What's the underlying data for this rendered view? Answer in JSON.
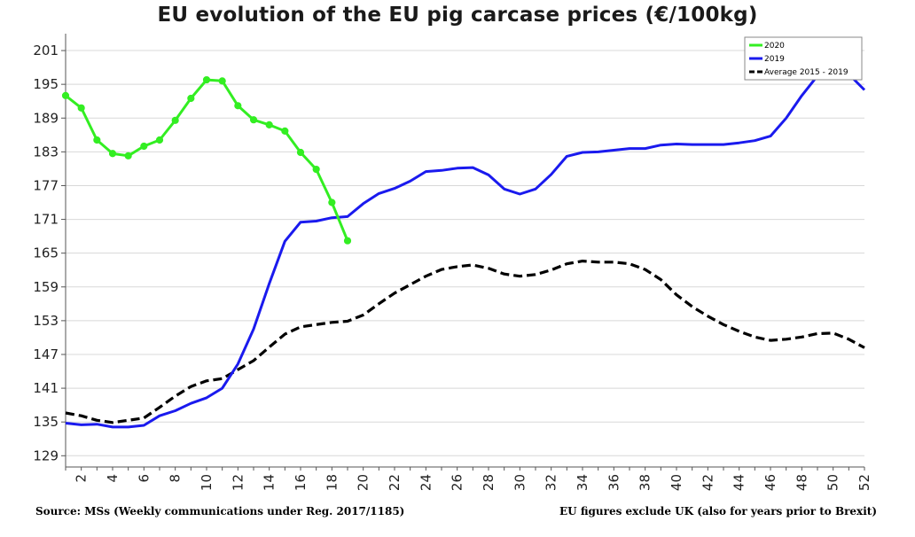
{
  "title": "EU evolution of the EU pig carcase prices (€/100kg)",
  "footer": {
    "source": "Source: MSs (Weekly communications under Reg. 2017/1185)",
    "note": "EU figures exclude UK (also for years prior to Brexit)"
  },
  "colors": {
    "s2020": "#33ee22",
    "s2019": "#1a1aee",
    "avg": "#000000",
    "grid": "#d8d8d8",
    "axis": "#555555"
  },
  "chart_data": {
    "type": "line",
    "xlim": [
      1,
      52
    ],
    "ylim": [
      127,
      204
    ],
    "x_ticks": [
      2,
      4,
      6,
      8,
      10,
      12,
      14,
      16,
      18,
      20,
      22,
      24,
      26,
      28,
      30,
      32,
      34,
      36,
      38,
      40,
      42,
      44,
      46,
      48,
      50,
      52
    ],
    "y_ticks": [
      129,
      135,
      141,
      147,
      153,
      159,
      165,
      171,
      177,
      183,
      189,
      195,
      201
    ],
    "grid": true,
    "legend": "top-right",
    "series": [
      {
        "name": "2020",
        "color_key": "s2020",
        "style": "solid-markers",
        "points": [
          [
            1,
            193.0
          ],
          [
            2,
            190.8
          ],
          [
            3,
            185.1
          ],
          [
            4,
            182.7
          ],
          [
            5,
            182.3
          ],
          [
            6,
            184.0
          ],
          [
            7,
            185.1
          ],
          [
            8,
            188.6
          ],
          [
            9,
            192.5
          ],
          [
            10,
            195.8
          ],
          [
            11,
            195.6
          ],
          [
            12,
            191.2
          ],
          [
            13,
            188.7
          ],
          [
            14,
            187.8
          ],
          [
            15,
            186.7
          ],
          [
            16,
            182.9
          ],
          [
            17,
            179.9
          ],
          [
            18,
            174.0
          ],
          [
            19,
            167.2
          ]
        ]
      },
      {
        "name": "2019",
        "color_key": "s2019",
        "style": "solid",
        "points": [
          [
            1,
            134.8
          ],
          [
            2,
            134.5
          ],
          [
            3,
            134.6
          ],
          [
            4,
            134.1
          ],
          [
            5,
            134.1
          ],
          [
            6,
            134.4
          ],
          [
            7,
            136.1
          ],
          [
            8,
            137.0
          ],
          [
            9,
            138.3
          ],
          [
            10,
            139.3
          ],
          [
            11,
            141.0
          ],
          [
            12,
            145.3
          ],
          [
            13,
            151.5
          ],
          [
            14,
            159.6
          ],
          [
            15,
            167.1
          ],
          [
            16,
            170.5
          ],
          [
            17,
            170.7
          ],
          [
            18,
            171.3
          ],
          [
            19,
            171.5
          ],
          [
            20,
            173.8
          ],
          [
            21,
            175.6
          ],
          [
            22,
            176.5
          ],
          [
            23,
            177.8
          ],
          [
            24,
            179.5
          ],
          [
            25,
            179.7
          ],
          [
            26,
            180.1
          ],
          [
            27,
            180.2
          ],
          [
            28,
            178.9
          ],
          [
            29,
            176.4
          ],
          [
            30,
            175.5
          ],
          [
            31,
            176.4
          ],
          [
            32,
            179.0
          ],
          [
            33,
            182.2
          ],
          [
            34,
            182.9
          ],
          [
            35,
            183.0
          ],
          [
            36,
            183.3
          ],
          [
            37,
            183.6
          ],
          [
            38,
            183.6
          ],
          [
            39,
            184.2
          ],
          [
            40,
            184.4
          ],
          [
            41,
            184.3
          ],
          [
            42,
            184.3
          ],
          [
            43,
            184.3
          ],
          [
            44,
            184.6
          ],
          [
            45,
            185.0
          ],
          [
            46,
            185.8
          ],
          [
            47,
            189.0
          ],
          [
            48,
            193.0
          ],
          [
            49,
            196.5
          ],
          [
            50,
            197.7
          ],
          [
            51,
            196.8
          ],
          [
            52,
            194.0
          ]
        ]
      },
      {
        "name": "Average 2015 - 2019",
        "color_key": "avg",
        "style": "dashed",
        "points": [
          [
            1,
            136.6
          ],
          [
            2,
            136.1
          ],
          [
            3,
            135.3
          ],
          [
            4,
            134.9
          ],
          [
            5,
            135.3
          ],
          [
            6,
            135.7
          ],
          [
            7,
            137.6
          ],
          [
            8,
            139.6
          ],
          [
            9,
            141.3
          ],
          [
            10,
            142.3
          ],
          [
            11,
            142.7
          ],
          [
            12,
            144.3
          ],
          [
            13,
            145.9
          ],
          [
            14,
            148.3
          ],
          [
            15,
            150.6
          ],
          [
            16,
            151.9
          ],
          [
            17,
            152.3
          ],
          [
            18,
            152.7
          ],
          [
            19,
            152.9
          ],
          [
            20,
            154.0
          ],
          [
            21,
            156.0
          ],
          [
            22,
            157.9
          ],
          [
            23,
            159.4
          ],
          [
            24,
            160.9
          ],
          [
            25,
            162.1
          ],
          [
            26,
            162.6
          ],
          [
            27,
            162.9
          ],
          [
            28,
            162.3
          ],
          [
            29,
            161.3
          ],
          [
            30,
            160.9
          ],
          [
            31,
            161.2
          ],
          [
            32,
            162.0
          ],
          [
            33,
            163.1
          ],
          [
            34,
            163.6
          ],
          [
            35,
            163.4
          ],
          [
            36,
            163.4
          ],
          [
            37,
            163.1
          ],
          [
            38,
            162.1
          ],
          [
            39,
            160.3
          ],
          [
            40,
            157.6
          ],
          [
            41,
            155.5
          ],
          [
            42,
            153.8
          ],
          [
            43,
            152.3
          ],
          [
            44,
            151.1
          ],
          [
            45,
            150.1
          ],
          [
            46,
            149.5
          ],
          [
            47,
            149.7
          ],
          [
            48,
            150.1
          ],
          [
            49,
            150.7
          ],
          [
            50,
            150.8
          ],
          [
            51,
            149.7
          ],
          [
            52,
            148.2
          ]
        ]
      }
    ]
  }
}
